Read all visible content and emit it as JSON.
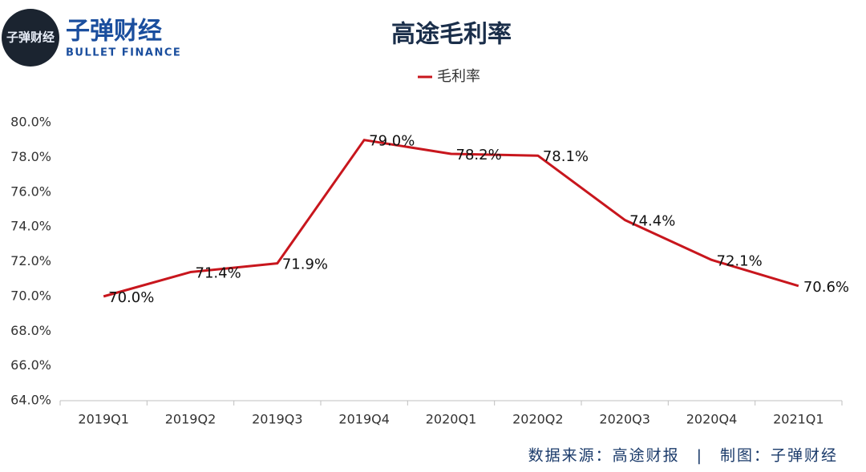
{
  "logo": {
    "name": "子弹财经",
    "english": "BULLET FINANCE"
  },
  "chart_data": {
    "type": "line",
    "title": "高途毛利率",
    "categories": [
      "2019Q1",
      "2019Q2",
      "2019Q3",
      "2019Q4",
      "2020Q1",
      "2020Q2",
      "2020Q3",
      "2020Q4",
      "2021Q1"
    ],
    "series": [
      {
        "name": "毛利率",
        "color": "#c8161d",
        "values": [
          70.0,
          71.4,
          71.9,
          79.0,
          78.2,
          78.1,
          74.4,
          72.1,
          70.6
        ],
        "value_labels": [
          "70.0%",
          "71.4%",
          "71.9%",
          "79.0%",
          "78.2%",
          "78.1%",
          "74.4%",
          "72.1%",
          "70.6%"
        ]
      }
    ],
    "ylim": [
      64,
      80
    ],
    "yticks": [
      {
        "value": 64,
        "label": "64.0%"
      },
      {
        "value": 66,
        "label": "66.0%"
      },
      {
        "value": 68,
        "label": "68.0%"
      },
      {
        "value": 70,
        "label": "70.0%"
      },
      {
        "value": 72,
        "label": "72.0%"
      },
      {
        "value": 74,
        "label": "74.0%"
      },
      {
        "value": 76,
        "label": "76.0%"
      },
      {
        "value": 78,
        "label": "78.0%"
      },
      {
        "value": 80,
        "label": "80.0%"
      }
    ],
    "grid": false,
    "legend": "top",
    "source": "数据来源：高途财报　|　制图：子弹财经"
  }
}
